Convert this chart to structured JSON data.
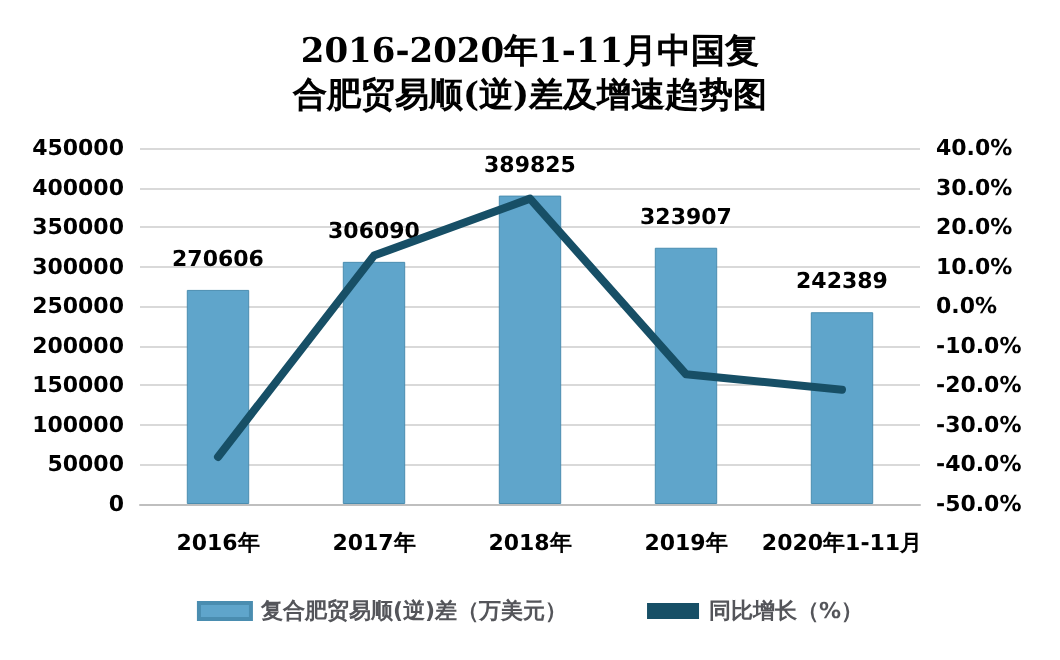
{
  "chart_data": {
    "type": "bar",
    "title": "2016-2020年1-11月中国复合肥贸易顺(逆)差及增速趋势图",
    "categories": [
      "2016年",
      "2017年",
      "2018年",
      "2019年",
      "2020年1-11月"
    ],
    "series": [
      {
        "name": "复合肥贸易顺(逆)差（万美元）",
        "color": "#5fa5cb",
        "values": [
          270606,
          306090,
          389825,
          323907,
          242389
        ]
      },
      {
        "name": "同比增长（%）",
        "type": "line",
        "axis": "y2",
        "color": "#174f66",
        "values": [
          -38.1,
          12.8,
          27.2,
          -17.2,
          -21.1
        ]
      }
    ],
    "ylim": [
      0,
      450000
    ],
    "yticks": [
      0,
      50000,
      100000,
      150000,
      200000,
      250000,
      300000,
      350000,
      400000,
      450000
    ],
    "y2lim": [
      -50,
      40
    ],
    "y2ticks": [
      {
        "value": -50,
        "label": "-50.0%"
      },
      {
        "value": -40,
        "label": "-40.0%"
      },
      {
        "value": -30,
        "label": "-30.0%"
      },
      {
        "value": -20,
        "label": "-20.0%"
      },
      {
        "value": -10,
        "label": "-10.0%"
      },
      {
        "value": 0,
        "label": "0.0%"
      },
      {
        "value": 10,
        "label": "10.0%"
      },
      {
        "value": 20,
        "label": "20.0%"
      },
      {
        "value": 30,
        "label": "30.0%"
      },
      {
        "value": 40,
        "label": "40.0%"
      }
    ],
    "value_labels": [
      "270606",
      "306090",
      "389825",
      "323907",
      "242389"
    ],
    "grid": "y",
    "legend": "bottom",
    "marker": "none"
  }
}
